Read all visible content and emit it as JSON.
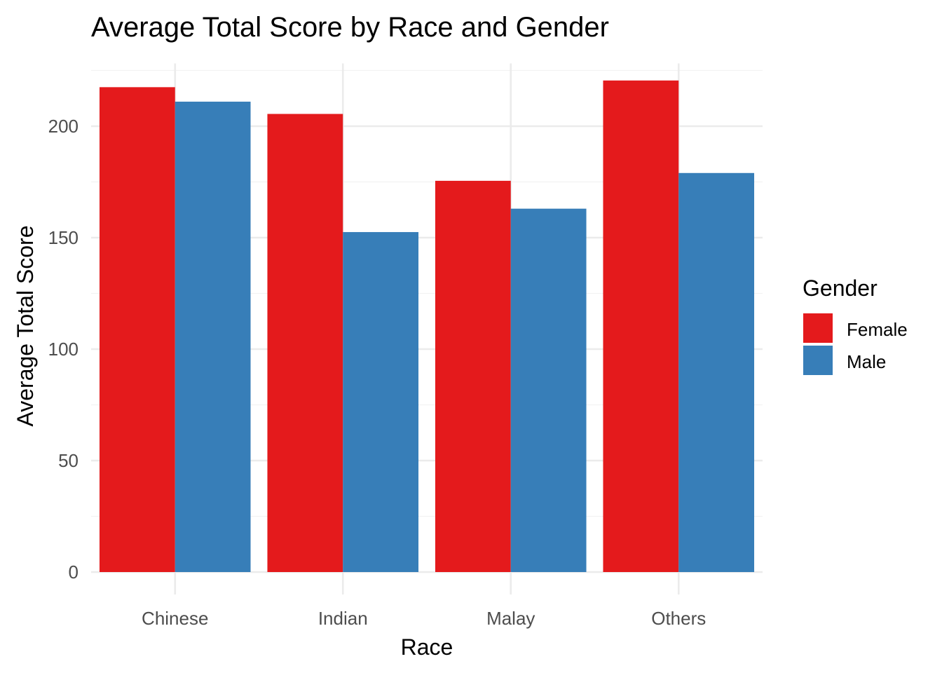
{
  "chart_data": {
    "type": "bar",
    "title": "Average Total Score by Race and Gender",
    "xlabel": "Race",
    "ylabel": "Average Total Score",
    "categories": [
      "Chinese",
      "Indian",
      "Malay",
      "Others"
    ],
    "series": [
      {
        "name": "Female",
        "color": "#e41a1c",
        "values": [
          217.5,
          205.5,
          175.5,
          220.5
        ]
      },
      {
        "name": "Male",
        "color": "#377eb8",
        "values": [
          211,
          152.5,
          163,
          179
        ]
      }
    ],
    "ylim": [
      0,
      225
    ],
    "y_ticks": [
      "0",
      "50",
      "100",
      "150",
      "200"
    ],
    "legend": {
      "title": "Gender",
      "position": "right"
    },
    "grid": true
  }
}
